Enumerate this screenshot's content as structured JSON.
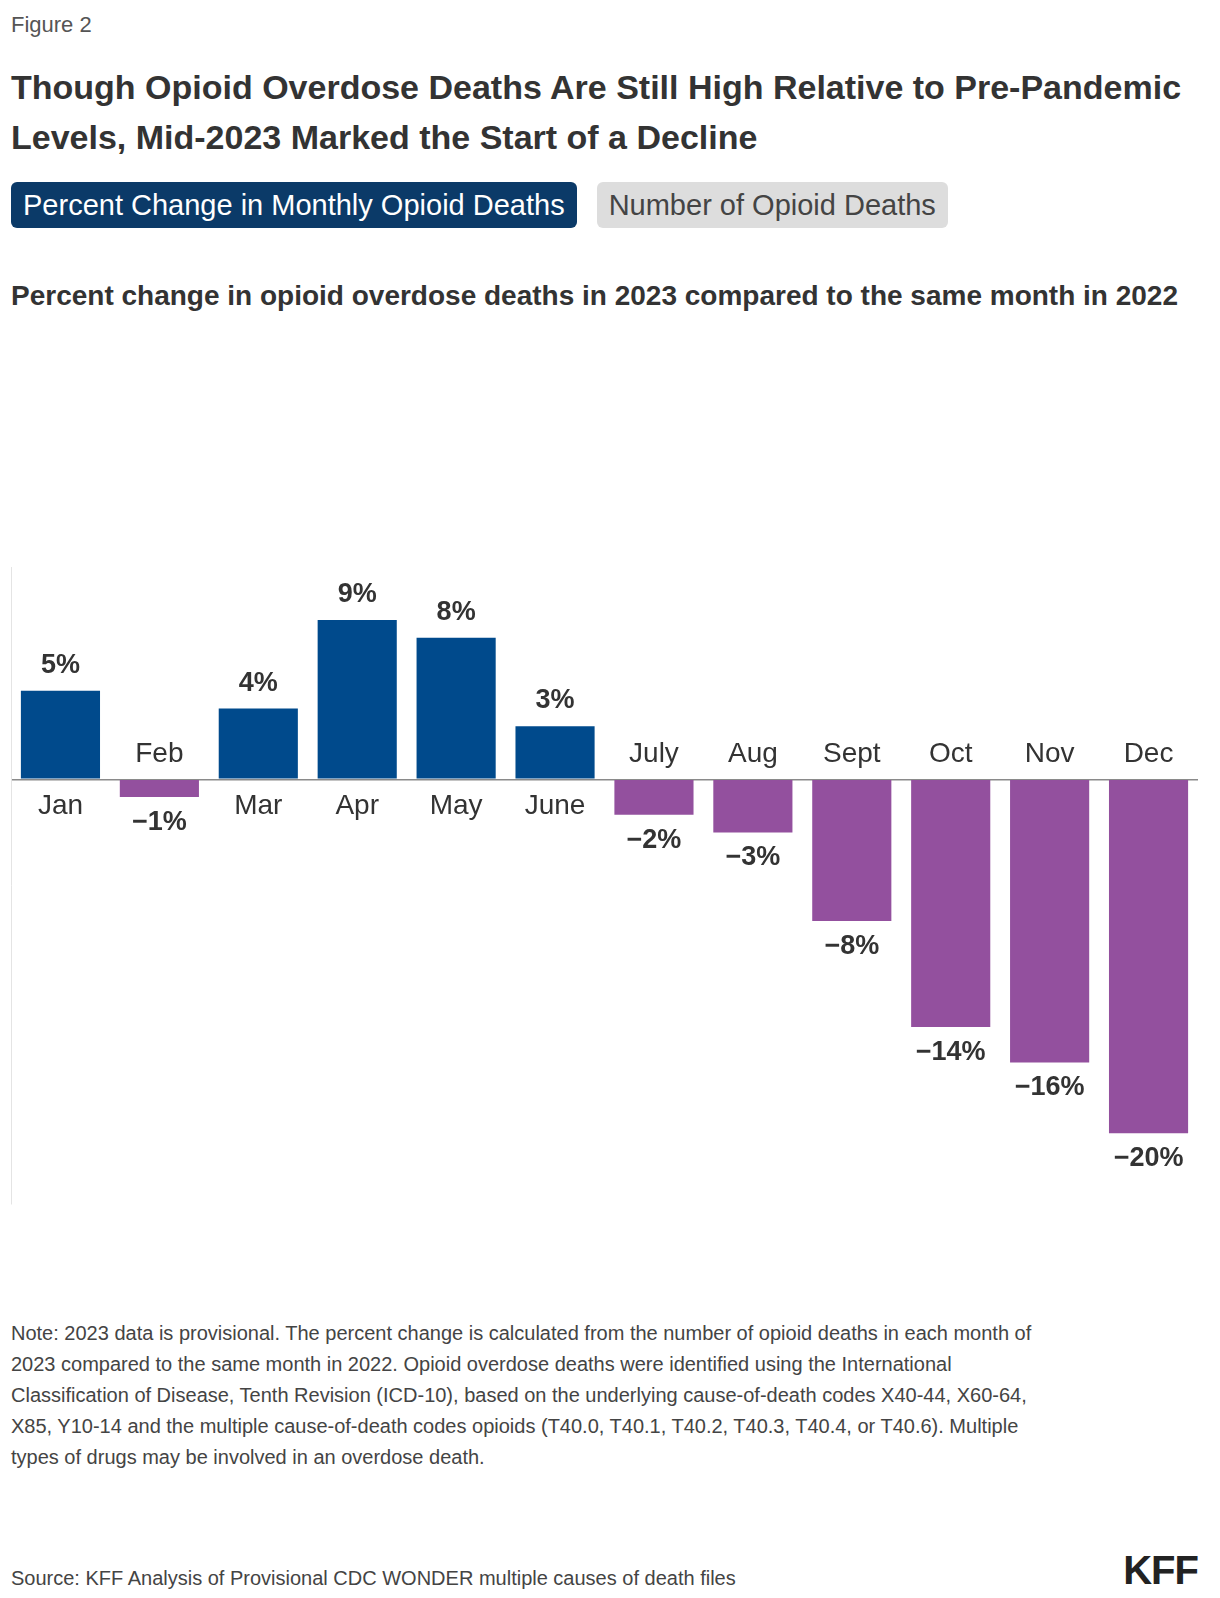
{
  "chart_data": {
    "type": "bar",
    "figure_label": "Figure 2",
    "title": "Though Opioid Overdose Deaths Are Still High Relative to Pre-Pandemic Levels, Mid-2023 Marked the Start of a Decline",
    "buttons": [
      "Percent Change in Monthly Opioid Deaths",
      "Number of Opioid Deaths"
    ],
    "subtitle": "Percent change in opioid overdose deaths in 2023 compared to the same month in 2022",
    "categories": [
      "Jan",
      "Feb",
      "Mar",
      "Apr",
      "May",
      "June",
      "July",
      "Aug",
      "Sept",
      "Oct",
      "Nov",
      "Dec"
    ],
    "values": [
      5,
      -1,
      4,
      9,
      8,
      3,
      -2,
      -3,
      -8,
      -14,
      -16,
      -20
    ],
    "value_labels": [
      "5%",
      "−1%",
      "4%",
      "9%",
      "8%",
      "3%",
      "−2%",
      "−3%",
      "−8%",
      "−14%",
      "−16%",
      "−20%"
    ],
    "colors": [
      "#004a8c",
      "#93509e",
      "#004a8c",
      "#004a8c",
      "#004a8c",
      "#004a8c",
      "#93509e",
      "#93509e",
      "#93509e",
      "#93509e",
      "#93509e",
      "#93509e"
    ],
    "ylim": [
      -24,
      12
    ],
    "yticks": [
      0
    ],
    "data_labels": true,
    "tick_labels": false,
    "note": "Note: 2023 data is provisional. The percent change is calculated from the number of opioid deaths in each month of 2023 compared to the same month in 2022. Opioid overdose deaths were identified using the International Classification of Disease, Tenth Revision (ICD-10), based on the underlying cause-of-death codes X40-44, X60-64, X85, Y10-14 and the multiple cause-of-death codes opioids (T40.0, T40.1, T40.2, T40.3, T40.4, or T40.6). Multiple types of drugs may be involved in an overdose death.",
    "source": "Source: KFF Analysis of Provisional CDC WONDER multiple causes of death files",
    "brand": "KFF"
  }
}
